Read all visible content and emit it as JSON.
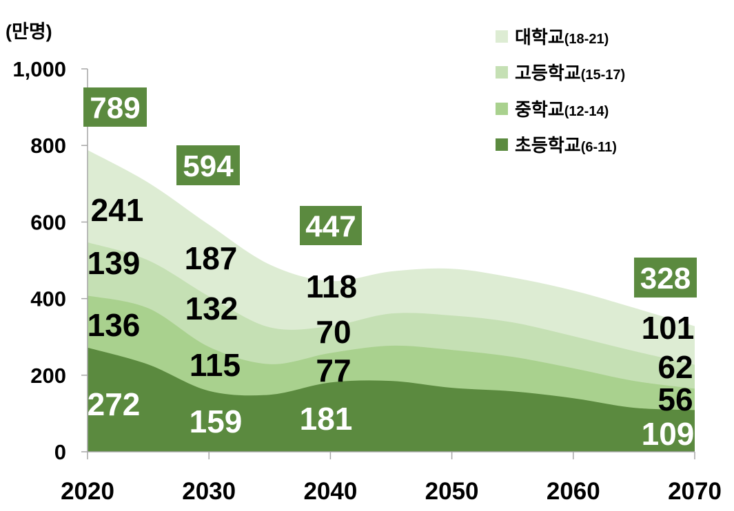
{
  "chart_data": {
    "type": "area",
    "stacked": true,
    "unit_label": "(만명)",
    "x": [
      2020,
      2025,
      2030,
      2035,
      2040,
      2045,
      2050,
      2055,
      2060,
      2065,
      2070
    ],
    "xlim": [
      2020,
      2070
    ],
    "ylim": [
      0,
      1000
    ],
    "x_ticks": [
      {
        "value": 2020,
        "label": "2020"
      },
      {
        "value": 2030,
        "label": "2030"
      },
      {
        "value": 2040,
        "label": "2040"
      },
      {
        "value": 2050,
        "label": "2050"
      },
      {
        "value": 2060,
        "label": "2060"
      },
      {
        "value": 2070,
        "label": "2070"
      }
    ],
    "y_ticks": [
      {
        "value": 0,
        "label": "0"
      },
      {
        "value": 200,
        "label": "200"
      },
      {
        "value": 400,
        "label": "400"
      },
      {
        "value": 600,
        "label": "600"
      },
      {
        "value": 800,
        "label": "800"
      },
      {
        "value": 1000,
        "label": "1,000"
      }
    ],
    "grid": false,
    "legend_position": "top-right",
    "series": [
      {
        "name": "대학교",
        "age_range": "(18-21)",
        "color": "#ddecd3",
        "label_color": "#000000",
        "values": [
          241,
          203,
          187,
          164,
          118,
          110,
          122,
          117,
          119,
          113,
          101
        ]
      },
      {
        "name": "고등학교",
        "age_range": "(15-17)",
        "color": "#c5e0b4",
        "label_color": "#000000",
        "values": [
          139,
          125,
          132,
          96,
          70,
          84,
          90,
          90,
          84,
          78,
          62
        ]
      },
      {
        "name": "중학교",
        "age_range": "(12-14)",
        "color": "#a9d18e",
        "label_color": "#000000",
        "values": [
          136,
          147,
          115,
          80,
          77,
          92,
          99,
          90,
          78,
          70,
          56
        ]
      },
      {
        "name": "초등학교",
        "age_range": "(6-11)",
        "color": "#5b8a3f",
        "label_color": "#ffffff",
        "values": [
          272,
          228,
          159,
          149,
          181,
          185,
          167,
          158,
          140,
          115,
          109
        ]
      }
    ],
    "totals": [
      {
        "year": 2020,
        "value": 789
      },
      {
        "year": 2030,
        "value": 594
      },
      {
        "year": 2040,
        "value": 447
      },
      {
        "year": 2070,
        "value": 328
      }
    ],
    "total_box_color": "#5b8a3f"
  }
}
